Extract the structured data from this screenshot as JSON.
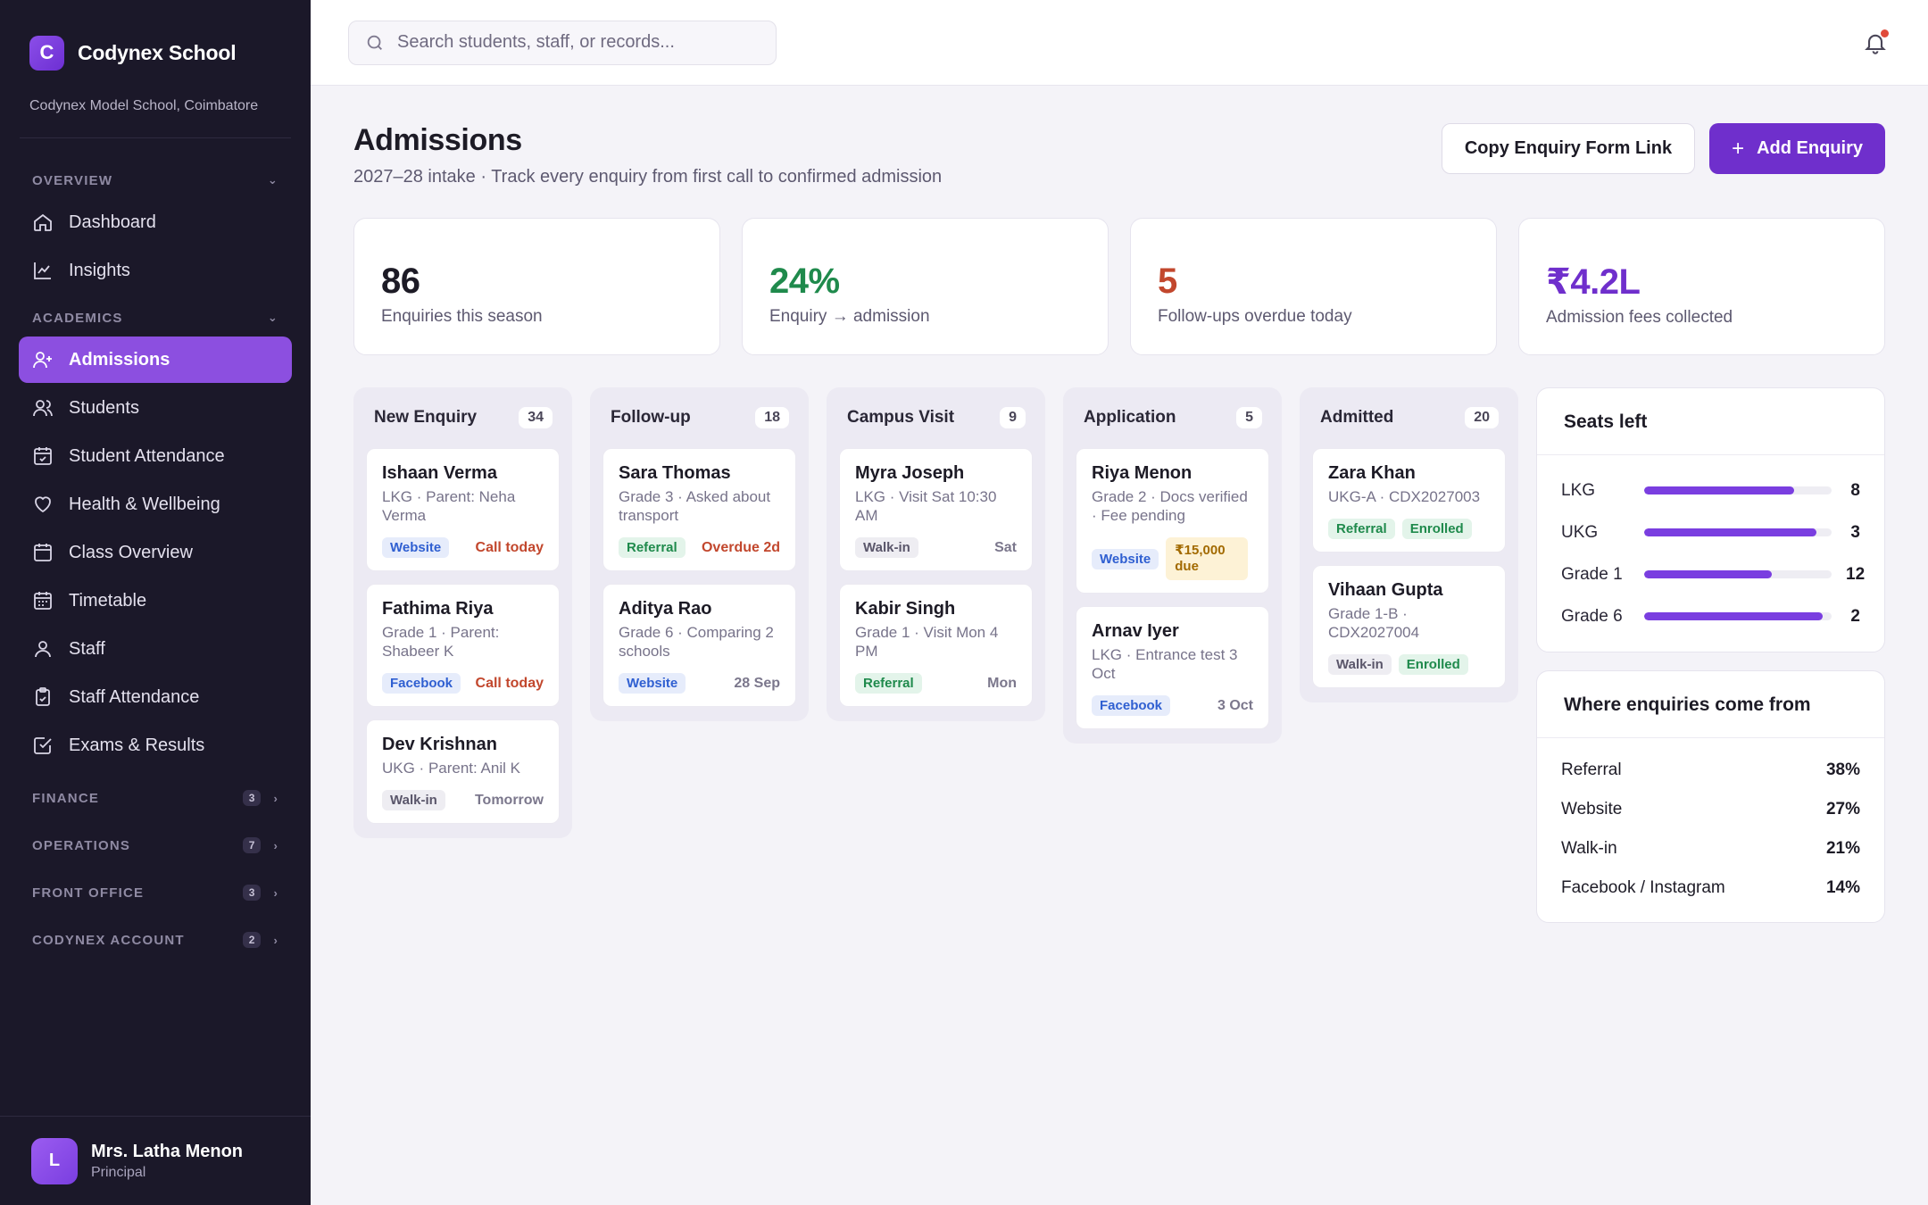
{
  "brand": {
    "logo_letter": "C",
    "name": "Codynex School",
    "school": "Codynex Model School, Coimbatore",
    "accent": "#8c4fe0"
  },
  "sidebar": {
    "sections": [
      {
        "label": "OVERVIEW"
      },
      {
        "label": "ACADEMICS"
      },
      {
        "label": "FINANCE",
        "count": "3"
      },
      {
        "label": "OPERATIONS",
        "count": "7"
      },
      {
        "label": "FRONT OFFICE",
        "count": "3"
      },
      {
        "label": "CODYNEX ACCOUNT",
        "count": "2"
      }
    ],
    "items": [
      {
        "label": "Dashboard",
        "icon": "home-icon"
      },
      {
        "label": "Insights",
        "icon": "chart-icon"
      },
      {
        "label": "Admissions",
        "icon": "user-plus-icon",
        "active": true
      },
      {
        "label": "Students",
        "icon": "users-icon"
      },
      {
        "label": "Student Attendance",
        "icon": "calendar-check-icon"
      },
      {
        "label": "Health & Wellbeing",
        "icon": "heart-icon"
      },
      {
        "label": "Class Overview",
        "icon": "calendar-icon"
      },
      {
        "label": "Timetable",
        "icon": "calendar-grid-icon"
      },
      {
        "label": "Staff",
        "icon": "user-icon"
      },
      {
        "label": "Staff Attendance",
        "icon": "clipboard-check-icon"
      },
      {
        "label": "Exams & Results",
        "icon": "check-square-icon"
      }
    ]
  },
  "user": {
    "initial": "L",
    "name": "Mrs. Latha Menon",
    "role": "Principal"
  },
  "search": {
    "placeholder": "Search students, staff, or records..."
  },
  "header": {
    "title": "Admissions",
    "subtitle": "2027–28 intake · Track every enquiry from first call to confirmed admission",
    "copy_link_label": "Copy Enquiry Form Link",
    "add_label": "Add Enquiry",
    "add_icon": "+"
  },
  "stats": [
    {
      "value": "86",
      "label": "Enquiries this season",
      "color": "#1d1b26"
    },
    {
      "value": "24%",
      "label": "Enquiry → admission",
      "color": "#1f8a4c"
    },
    {
      "value": "5",
      "label": "Follow-ups overdue today",
      "color": "#c2472d"
    },
    {
      "value": "₹4.2L",
      "label": "Admission fees collected",
      "color": "#6f2fcc"
    }
  ],
  "columns": [
    {
      "title": "New Enquiry",
      "count": "34",
      "cards": [
        {
          "name": "Ishaan Verma",
          "sub": "LKG · Parent: Neha Verma",
          "tag": "Website",
          "note": "Call today"
        },
        {
          "name": "Fathima Riya",
          "sub": "Grade 1 · Parent: Shabeer K",
          "tag": "Facebook",
          "note": "Call today"
        },
        {
          "name": "Dev Krishnan",
          "sub": "UKG · Parent: Anil K",
          "tag": "Walk-in",
          "note": "Tomorrow"
        }
      ]
    },
    {
      "title": "Follow-up",
      "count": "18",
      "cards": [
        {
          "name": "Sara Thomas",
          "sub": "Grade 3 · Asked about transport",
          "tag": "Referral",
          "note": "Overdue 2d"
        },
        {
          "name": "Aditya Rao",
          "sub": "Grade 6 · Comparing 2 schools",
          "tag": "Website",
          "note": "28 Sep"
        }
      ]
    },
    {
      "title": "Campus Visit",
      "count": "9",
      "cards": [
        {
          "name": "Myra Joseph",
          "sub": "LKG · Visit Sat 10:30 AM",
          "tag": "Walk-in",
          "note": "Sat"
        },
        {
          "name": "Kabir Singh",
          "sub": "Grade 1 · Visit Mon 4 PM",
          "tag": "Referral",
          "note": "Mon"
        }
      ]
    },
    {
      "title": "Application",
      "count": "5",
      "cards": [
        {
          "name": "Riya Menon",
          "sub": "Grade 2 · Docs verified · Fee pending",
          "tag": "Website",
          "note": "₹15,000 due"
        },
        {
          "name": "Arnav Iyer",
          "sub": "LKG · Entrance test 3 Oct",
          "tag": "Facebook",
          "note": "3 Oct"
        }
      ]
    },
    {
      "title": "Admitted",
      "count": "20",
      "cards": [
        {
          "name": "Zara Khan",
          "sub": "UKG-A · CDX2027003",
          "tag": "Referral",
          "note": "Enrolled"
        },
        {
          "name": "Vihaan Gupta",
          "sub": "Grade 1-B · CDX2027004",
          "tag": "Walk-in",
          "note": "Enrolled"
        }
      ]
    }
  ],
  "seats": {
    "title": "Seats left",
    "rows": [
      {
        "label": "LKG",
        "value": "8",
        "fill": 0.8
      },
      {
        "label": "UKG",
        "value": "3",
        "fill": 0.92
      },
      {
        "label": "Grade 1",
        "value": "12",
        "fill": 0.68
      },
      {
        "label": "Grade 6",
        "value": "2",
        "fill": 0.95
      }
    ]
  },
  "sources": {
    "title": "Where enquiries come from",
    "rows": [
      {
        "label": "Referral",
        "pct": "38%"
      },
      {
        "label": "Website",
        "pct": "27%"
      },
      {
        "label": "Walk-in",
        "pct": "21%"
      },
      {
        "label": "Facebook / Instagram",
        "pct": "14%"
      }
    ]
  }
}
